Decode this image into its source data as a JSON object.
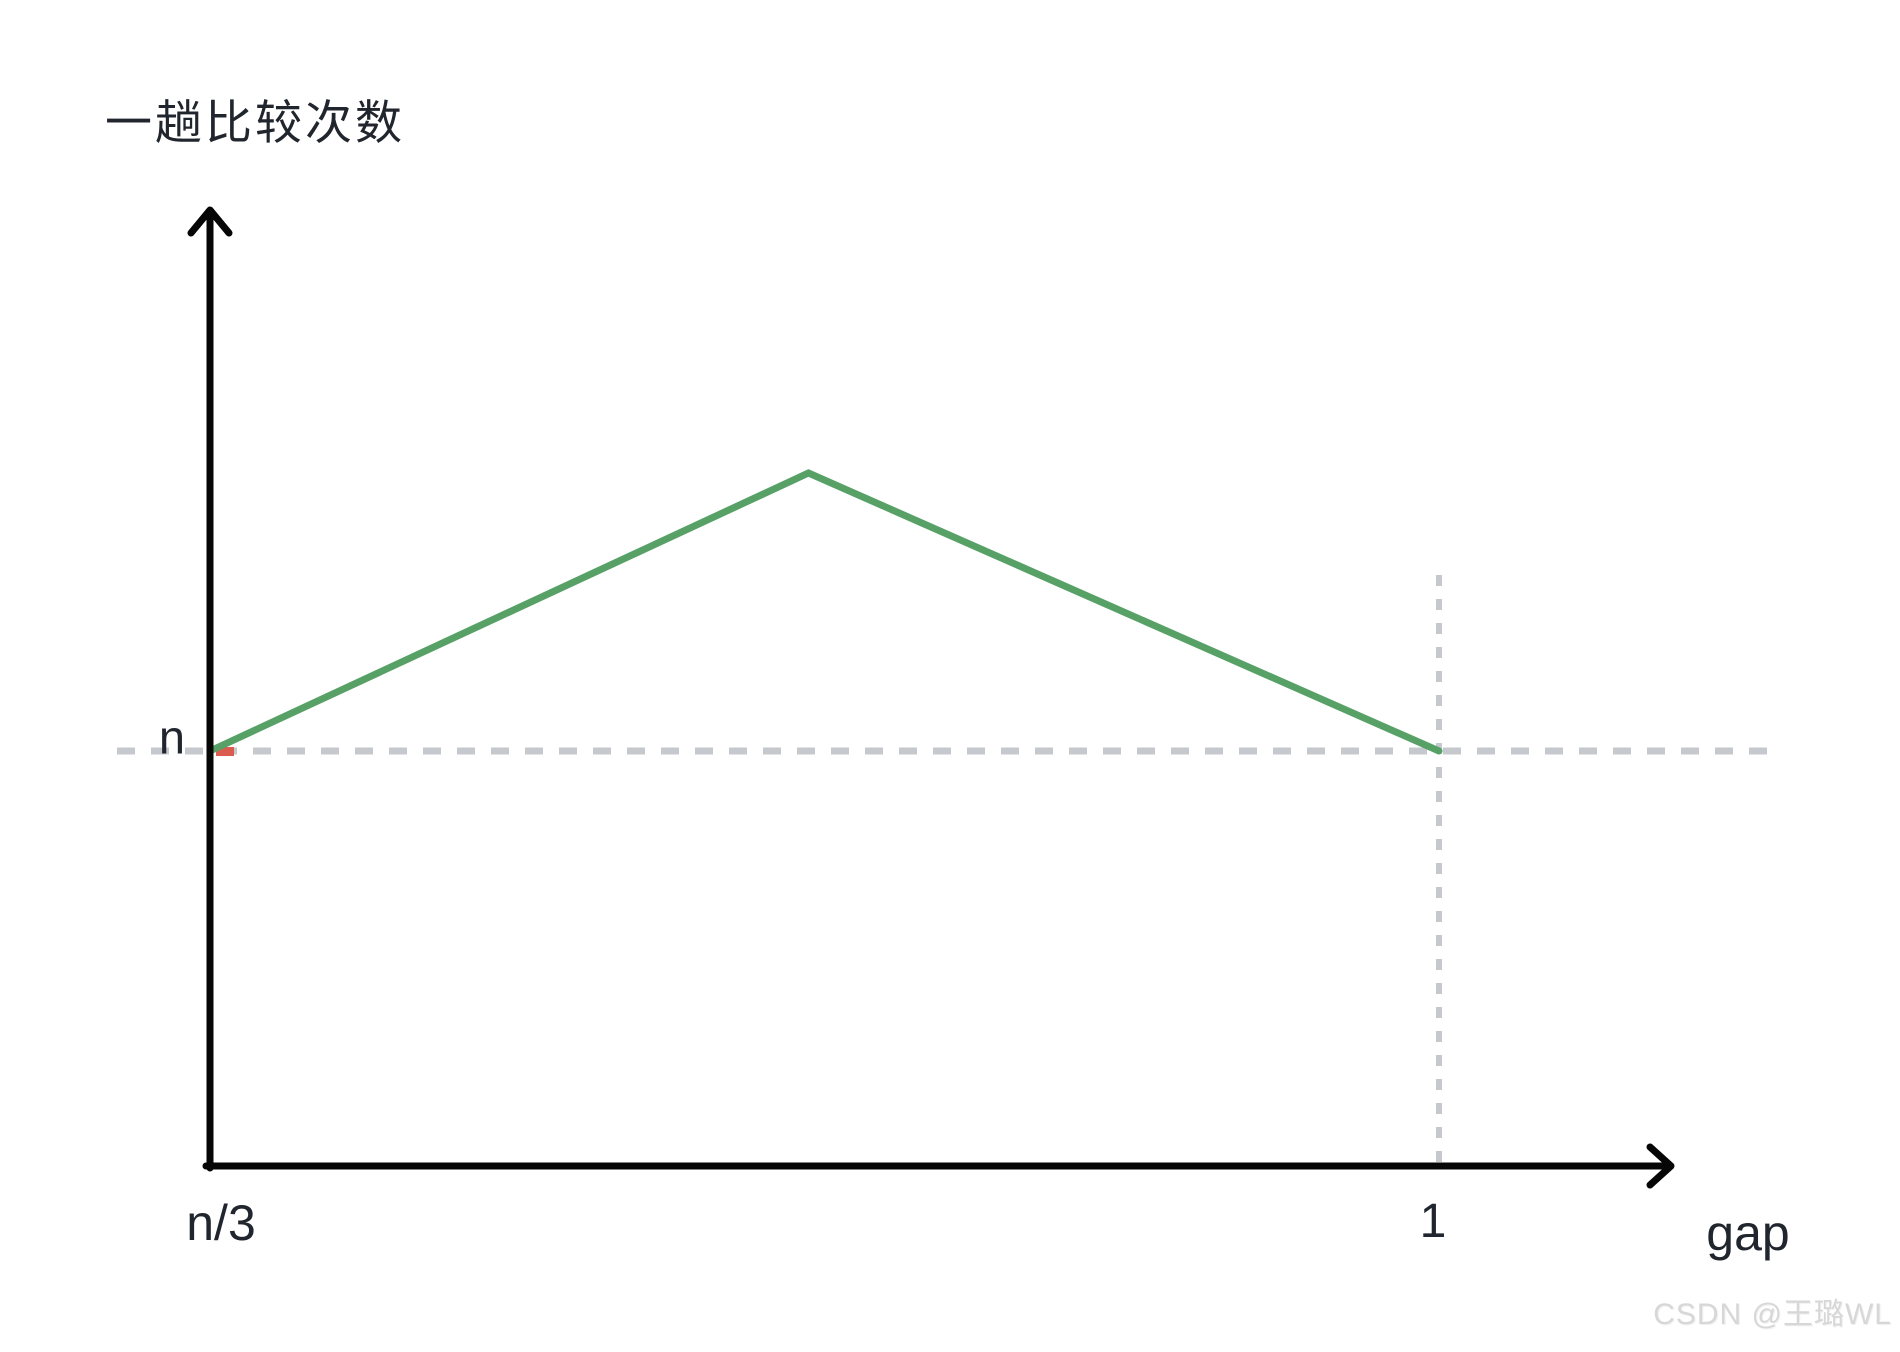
{
  "title": {
    "text": "一趟比较次数"
  },
  "axes": {
    "y_tick_label": "n",
    "x_origin_label": "n/3",
    "x_tick_label": "1",
    "x_axis_label": "gap"
  },
  "watermark": {
    "text": "CSDN @王璐WL"
  },
  "colors": {
    "background": "#ffffff",
    "text": "#21252d",
    "axis": "#060606",
    "line_green": "#57a167",
    "dash_gray": "#c5c8cc",
    "red_mark": "#d95c4f",
    "watermark": "#d7d7d7"
  },
  "chart_data": {
    "type": "line",
    "title": "一趟比较次数",
    "xlabel": "gap",
    "ylabel": "一趟比较次数",
    "x_tick_labels": [
      "n/3",
      "1"
    ],
    "y_tick_labels": [
      "n"
    ],
    "y_unit": "n",
    "grid": false,
    "legend": false,
    "series": [
      {
        "name": "一趟比较次数",
        "color": "#57a167",
        "points": [
          {
            "x_norm": 0.0,
            "y_in_n": 1.0,
            "x_label": "n/3"
          },
          {
            "x_norm": 0.487,
            "y_in_n": 1.67
          },
          {
            "x_norm": 1.0,
            "y_in_n": 1.0,
            "x_label": "1"
          }
        ]
      }
    ],
    "guides": [
      {
        "type": "horizontal-dashed",
        "y_in_n": 1.0
      },
      {
        "type": "vertical-dashed",
        "x_label": "1"
      }
    ]
  }
}
